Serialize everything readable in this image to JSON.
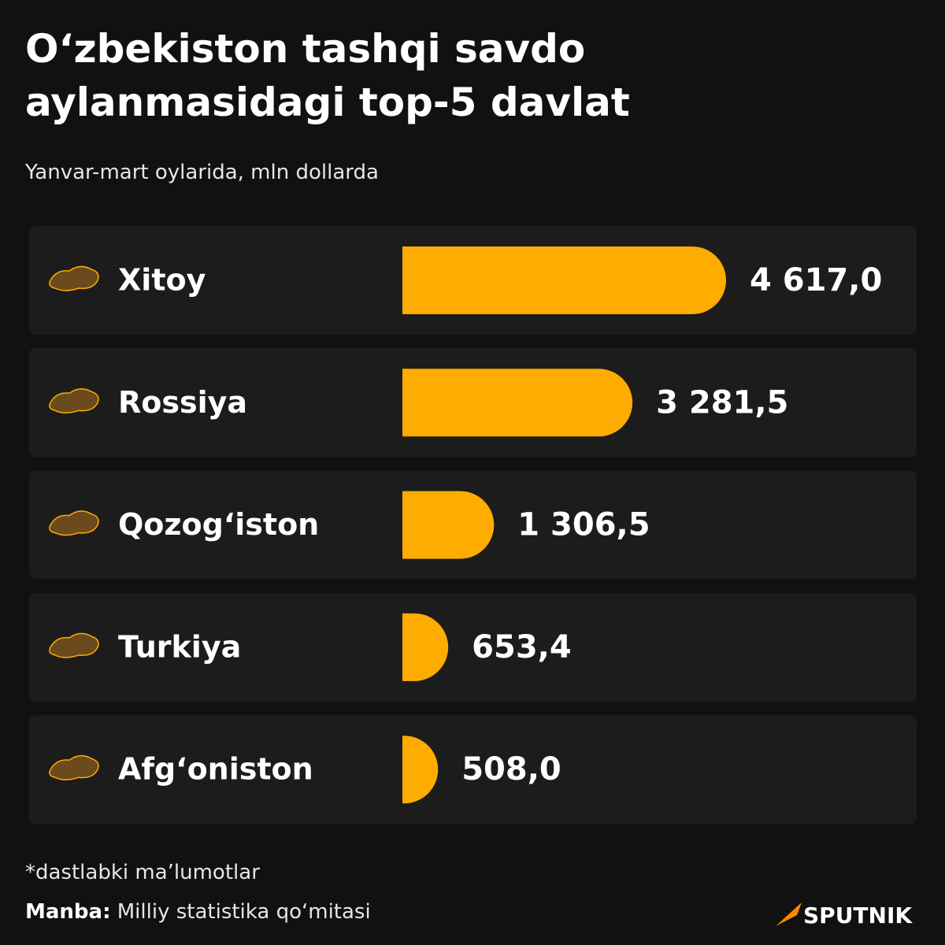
{
  "chart_data": {
    "type": "bar",
    "orientation": "horizontal",
    "title": "O‘zbekiston tashqi savdo aylanmasidagi top-5 davlat",
    "subtitle": "Yanvar-mart oylarida, mln dollarda",
    "categories": [
      "Xitoy",
      "Rossiya",
      "Qozog‘iston",
      "Turkiya",
      "Afg‘oniston"
    ],
    "values": [
      4617.0,
      3281.5,
      1306.5,
      653.4,
      508.0
    ],
    "value_labels": [
      "4 617,0",
      "3 281,5",
      "1 306,5",
      "653,4",
      "508,0"
    ],
    "color": "#ffac00",
    "footnote": "*dastlabki ma’lumotlar",
    "source_label": "Manba:",
    "source": "Milliy statistika qo‘mitasi",
    "brand": "SPUTNIK"
  }
}
